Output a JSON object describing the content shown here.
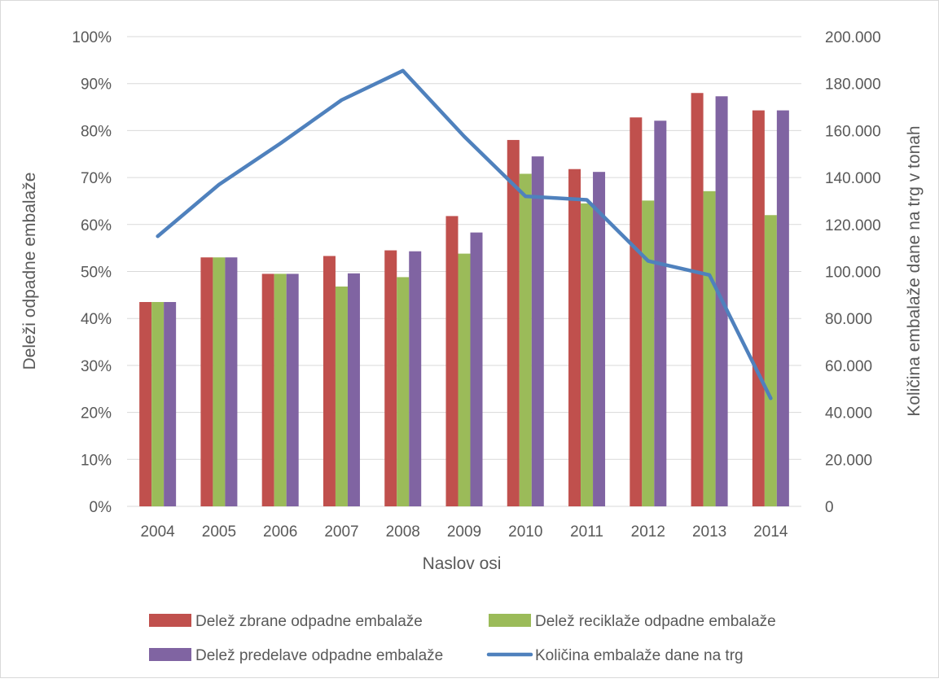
{
  "chart_data": {
    "type": "bar",
    "title": "",
    "xlabel": "Naslov osi",
    "ylabel": "Deleži odpadne embalaže",
    "y2label": "Količina embalaže dane na trg v tonah",
    "categories": [
      "2004",
      "2005",
      "2006",
      "2007",
      "2008",
      "2009",
      "2010",
      "2011",
      "2012",
      "2013",
      "2014"
    ],
    "ylim": [
      0,
      100
    ],
    "y2lim": [
      0,
      200000
    ],
    "yticks": [
      "0%",
      "10%",
      "20%",
      "30%",
      "40%",
      "50%",
      "60%",
      "70%",
      "80%",
      "90%",
      "100%"
    ],
    "y2ticks": [
      "0",
      "20.000",
      "40.000",
      "60.000",
      "80.000",
      "100.000",
      "120.000",
      "140.000",
      "160.000",
      "180.000",
      "200.000"
    ],
    "grid": true,
    "legend_position": "bottom",
    "series": [
      {
        "name": "Delež zbrane odpadne embalaže",
        "type": "bar",
        "axis": "left",
        "color": "#c0504d",
        "values": [
          43.5,
          53,
          49.5,
          53.3,
          54.5,
          61.8,
          78,
          71.8,
          82.8,
          88,
          84.3
        ]
      },
      {
        "name": "Delež reciklaže odpadne embalaže",
        "type": "bar",
        "axis": "left",
        "color": "#9bbb59",
        "values": [
          43.5,
          53,
          49.5,
          46.8,
          48.8,
          53.8,
          70.8,
          64.5,
          65.1,
          67.1,
          62
        ]
      },
      {
        "name": "Delež predelave odpadne embalaže",
        "type": "bar",
        "axis": "left",
        "color": "#8064a2",
        "values": [
          43.5,
          53,
          49.5,
          49.6,
          54.3,
          58.3,
          74.5,
          71.2,
          82.1,
          87.3,
          84.3
        ]
      },
      {
        "name": "Količina embalaže dane na trg",
        "type": "line",
        "axis": "right",
        "color": "#4f81bd",
        "values": [
          115000,
          137000,
          154500,
          173000,
          185500,
          157500,
          132000,
          130500,
          104500,
          98500,
          46000
        ]
      }
    ]
  }
}
